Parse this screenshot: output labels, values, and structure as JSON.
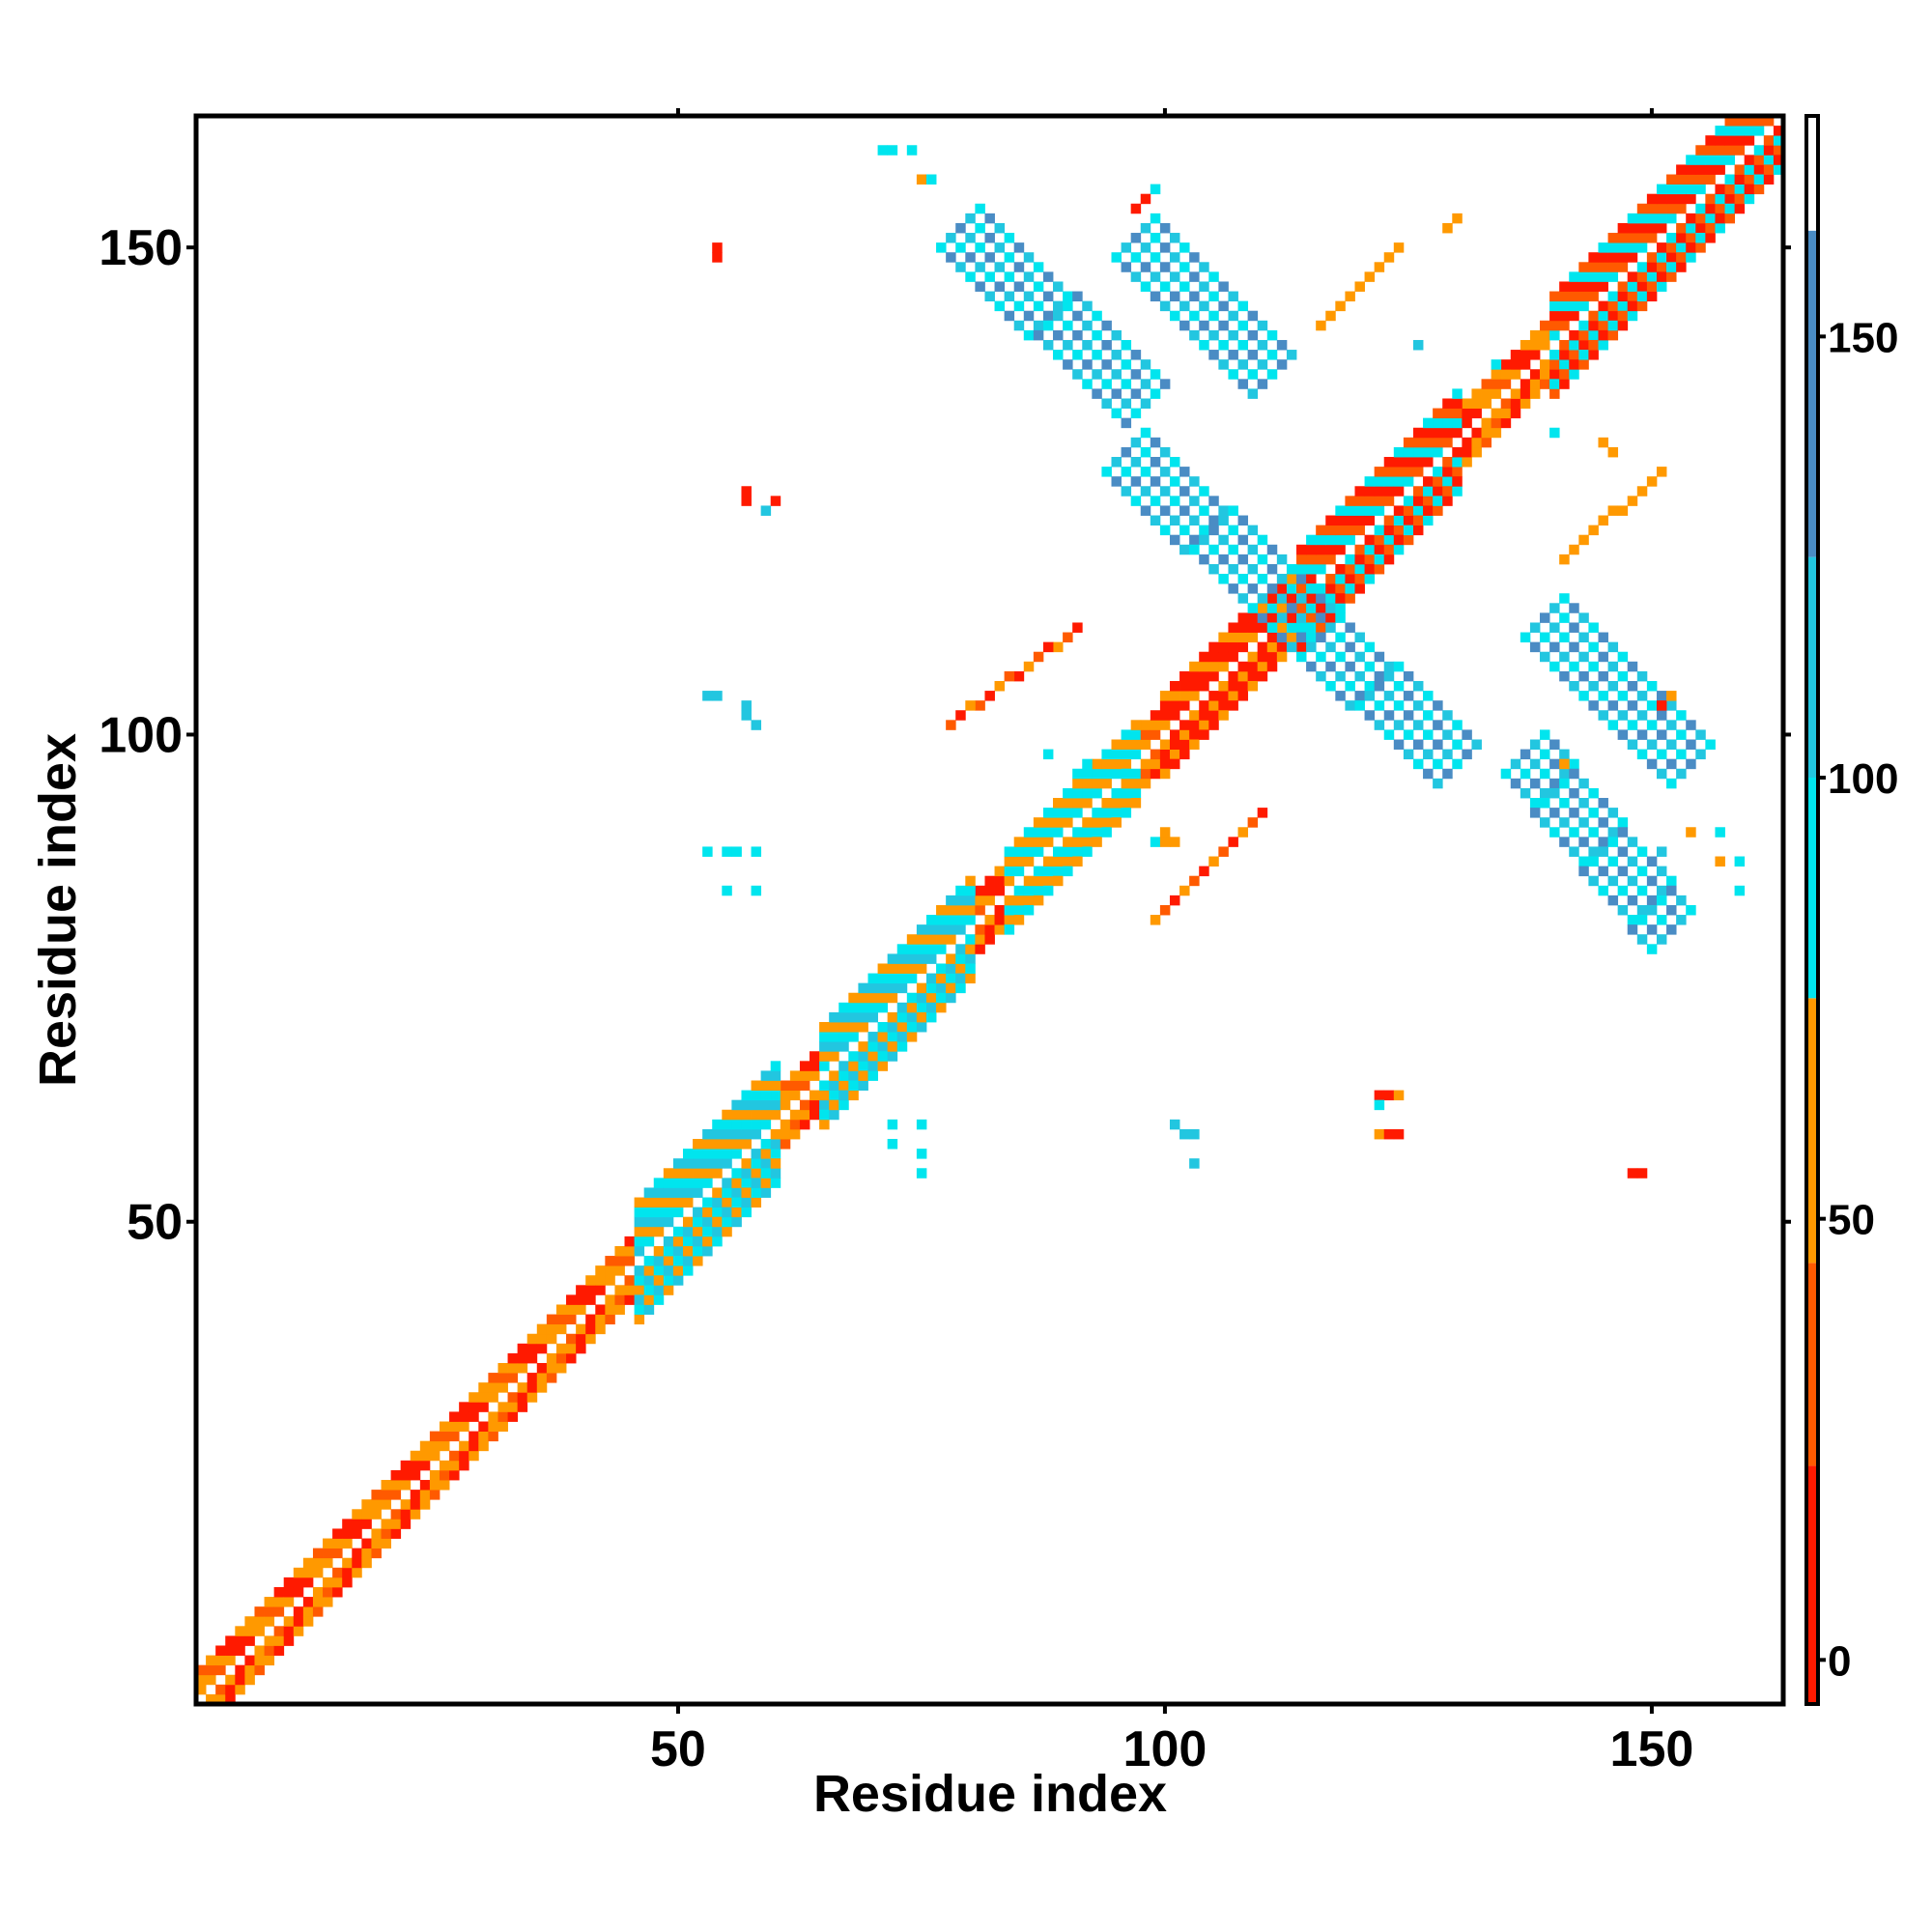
{
  "chart_data": {
    "type": "heatmap",
    "xlabel": "Residue index",
    "ylabel": "Residue index",
    "xlim": [
      1,
      163
    ],
    "ylim": [
      1,
      163
    ],
    "x_ticks": [
      "50",
      "100",
      "150"
    ],
    "x_tick_values": [
      50,
      100,
      150
    ],
    "y_ticks": [
      "50",
      "100",
      "150"
    ],
    "y_tick_values": [
      50,
      100,
      150
    ],
    "colorbar": {
      "range": [
        -5,
        175
      ],
      "ticks": [
        "0",
        "50",
        "100",
        "150"
      ],
      "tick_values": [
        0,
        50,
        100,
        150
      ],
      "bands": [
        {
          "from": -5,
          "to": 22,
          "color": "#ff1a00"
        },
        {
          "from": 22,
          "to": 45,
          "color": "#ff5a00"
        },
        {
          "from": 45,
          "to": 75,
          "color": "#ff9900"
        },
        {
          "from": 75,
          "to": 100,
          "color": "#00e5ee"
        },
        {
          "from": 100,
          "to": 125,
          "color": "#22c6e0"
        },
        {
          "from": 125,
          "to": 162,
          "color": "#4a8cc4"
        },
        {
          "from": 162,
          "to": 175,
          "color": "#ffffff"
        }
      ]
    },
    "regions": [
      {
        "kind": "diagonal",
        "x0": 1,
        "x1": 163,
        "halfwidth": 3,
        "values": [
          5,
          20,
          45,
          65,
          35,
          60
        ]
      },
      {
        "kind": "diagonal",
        "x0": 46,
        "x1": 60,
        "halfwidth": 6,
        "values": [
          90,
          50,
          100
        ]
      },
      {
        "kind": "diagonal",
        "x0": 65,
        "x1": 80,
        "halfwidth": 5,
        "values": [
          90,
          55,
          100
        ]
      },
      {
        "kind": "diagonal",
        "x0": 84,
        "x1": 97,
        "halfwidth": 4,
        "values": [
          95,
          45
        ]
      },
      {
        "kind": "diagonal",
        "x0": 100,
        "x1": 112,
        "halfwidth": 4,
        "values": [
          5,
          10,
          55
        ]
      },
      {
        "kind": "diagonal",
        "x0": 114,
        "x1": 130,
        "halfwidth": 5,
        "values": [
          95,
          40,
          5
        ]
      },
      {
        "kind": "diagonal",
        "x0": 140,
        "x1": 163,
        "halfwidth": 5,
        "values": [
          95,
          40,
          10
        ]
      },
      {
        "kind": "antidiagonal",
        "x0": 79,
        "y0": 152,
        "x1": 98,
        "y1": 134,
        "halfwidth": 2,
        "values": [
          150,
          120,
          95
        ]
      },
      {
        "kind": "antidiagonal",
        "x0": 97,
        "y0": 151,
        "x1": 111,
        "y1": 137,
        "halfwidth": 2,
        "values": [
          150,
          120,
          95
        ]
      },
      {
        "kind": "antidiagonal",
        "x0": 96,
        "y0": 129,
        "x1": 113,
        "y1": 113,
        "halfwidth": 2,
        "values": [
          150,
          120,
          95
        ]
      },
      {
        "kind": "antidiagonal",
        "x0": 113,
        "y0": 113,
        "x1": 130,
        "y1": 97,
        "halfwidth": 2,
        "values": [
          150,
          120,
          95
        ]
      },
      {
        "kind": "antidiagonal",
        "x0": 137,
        "y0": 98,
        "x1": 152,
        "y1": 80,
        "halfwidth": 2,
        "values": [
          150,
          120,
          95
        ]
      },
      {
        "kind": "antidiagonal",
        "x0": 139,
        "y0": 112,
        "x1": 154,
        "y1": 97,
        "halfwidth": 2,
        "values": [
          150,
          120,
          95
        ]
      },
      {
        "kind": "antidiagonal",
        "x0": 110,
        "y0": 92,
        "x1": 99,
        "y1": 81,
        "halfwidth": 0,
        "values": [
          10,
          40,
          60
        ]
      },
      {
        "kind": "antidiagonal",
        "x0": 91,
        "y0": 111,
        "x1": 78,
        "y1": 101,
        "halfwidth": 0,
        "values": [
          10,
          40,
          60
        ]
      },
      {
        "kind": "antidiagonal",
        "x0": 124,
        "y0": 150,
        "x1": 116,
        "y1": 142,
        "halfwidth": 0,
        "values": [
          50,
          60
        ]
      },
      {
        "kind": "antidiagonal",
        "x0": 151,
        "y0": 127,
        "x1": 141,
        "y1": 118,
        "halfwidth": 0,
        "values": [
          50,
          60
        ]
      }
    ],
    "points": [
      {
        "x": 54,
        "y": 149,
        "v": 5
      },
      {
        "x": 54,
        "y": 150,
        "v": 5
      },
      {
        "x": 57,
        "y": 124,
        "v": 10
      },
      {
        "x": 57,
        "y": 125,
        "v": 10
      },
      {
        "x": 60,
        "y": 124,
        "v": 10
      },
      {
        "x": 59,
        "y": 123,
        "v": 100
      },
      {
        "x": 53,
        "y": 104,
        "v": 120
      },
      {
        "x": 54,
        "y": 104,
        "v": 120
      },
      {
        "x": 57,
        "y": 103,
        "v": 120
      },
      {
        "x": 57,
        "y": 102,
        "v": 120
      },
      {
        "x": 58,
        "y": 101,
        "v": 120
      },
      {
        "x": 71,
        "y": 160,
        "v": 95
      },
      {
        "x": 72,
        "y": 160,
        "v": 95
      },
      {
        "x": 74,
        "y": 160,
        "v": 95
      },
      {
        "x": 75,
        "y": 157,
        "v": 60
      },
      {
        "x": 76,
        "y": 157,
        "v": 95
      },
      {
        "x": 99,
        "y": 156,
        "v": 95
      },
      {
        "x": 97,
        "y": 154,
        "v": 5
      },
      {
        "x": 98,
        "y": 155,
        "v": 5
      },
      {
        "x": 130,
        "y": 153,
        "v": 60
      },
      {
        "x": 129,
        "y": 152,
        "v": 60
      },
      {
        "x": 126,
        "y": 140,
        "v": 120
      },
      {
        "x": 134,
        "y": 138,
        "v": 95
      },
      {
        "x": 140,
        "y": 131,
        "v": 95
      },
      {
        "x": 145,
        "y": 130,
        "v": 60
      },
      {
        "x": 146,
        "y": 129,
        "v": 60
      },
      {
        "x": 53,
        "y": 88,
        "v": 95
      },
      {
        "x": 55,
        "y": 88,
        "v": 95
      },
      {
        "x": 56,
        "y": 88,
        "v": 95
      },
      {
        "x": 58,
        "y": 88,
        "v": 95
      },
      {
        "x": 55,
        "y": 84,
        "v": 95
      },
      {
        "x": 58,
        "y": 84,
        "v": 95
      },
      {
        "x": 72,
        "y": 60,
        "v": 95
      },
      {
        "x": 75,
        "y": 60,
        "v": 95
      },
      {
        "x": 72,
        "y": 58,
        "v": 95
      },
      {
        "x": 75,
        "y": 57,
        "v": 95
      },
      {
        "x": 75,
        "y": 55,
        "v": 95
      },
      {
        "x": 101,
        "y": 60,
        "v": 120
      },
      {
        "x": 102,
        "y": 59,
        "v": 120
      },
      {
        "x": 103,
        "y": 59,
        "v": 120
      },
      {
        "x": 103,
        "y": 56,
        "v": 120
      },
      {
        "x": 122,
        "y": 63,
        "v": 5
      },
      {
        "x": 123,
        "y": 63,
        "v": 5
      },
      {
        "x": 124,
        "y": 63,
        "v": 60
      },
      {
        "x": 122,
        "y": 59,
        "v": 60
      },
      {
        "x": 123,
        "y": 59,
        "v": 5
      },
      {
        "x": 124,
        "y": 59,
        "v": 5
      },
      {
        "x": 122,
        "y": 62,
        "v": 95
      },
      {
        "x": 148,
        "y": 55,
        "v": 5
      },
      {
        "x": 149,
        "y": 55,
        "v": 5
      },
      {
        "x": 99,
        "y": 89,
        "v": 95
      },
      {
        "x": 100,
        "y": 90,
        "v": 60
      },
      {
        "x": 100,
        "y": 89,
        "v": 60
      },
      {
        "x": 101,
        "y": 89,
        "v": 60
      },
      {
        "x": 154,
        "y": 90,
        "v": 60
      },
      {
        "x": 157,
        "y": 90,
        "v": 95
      },
      {
        "x": 157,
        "y": 87,
        "v": 60
      },
      {
        "x": 159,
        "y": 87,
        "v": 95
      },
      {
        "x": 159,
        "y": 84,
        "v": 95
      },
      {
        "x": 151,
        "y": 88,
        "v": 120
      },
      {
        "x": 88,
        "y": 98,
        "v": 95
      },
      {
        "x": 92,
        "y": 97,
        "v": 95
      },
      {
        "x": 91,
        "y": 96,
        "v": 95
      },
      {
        "x": 96,
        "y": 96,
        "v": 95
      },
      {
        "x": 141,
        "y": 97,
        "v": 60
      },
      {
        "x": 151,
        "y": 103,
        "v": 5
      },
      {
        "x": 152,
        "y": 104,
        "v": 60
      }
    ]
  }
}
